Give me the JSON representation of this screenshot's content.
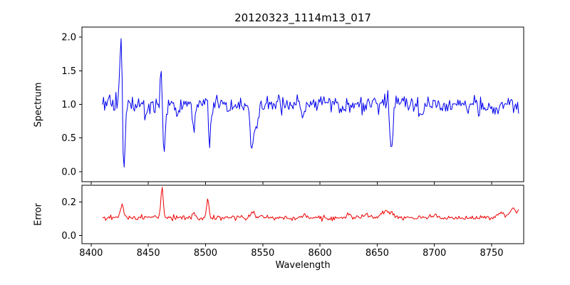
{
  "chart_data": [
    {
      "type": "line",
      "panel": "spectrum",
      "title": "20120323_1114m13_017",
      "ylabel": "Spectrum",
      "xlabel": "",
      "legend": "none",
      "grid": false,
      "line_color": "#0000ee",
      "xlim": [
        8392,
        8778
      ],
      "ylim": [
        -0.15,
        2.15
      ],
      "xticks": [
        8400,
        8450,
        8500,
        8550,
        8600,
        8650,
        8700,
        8750
      ],
      "yticks": [
        0.0,
        0.5,
        1.0,
        1.5,
        2.0
      ],
      "x_start": 8410,
      "x_end": 8774,
      "x_step": 0.9,
      "baseline": 1.0,
      "noise_sigma": 0.065,
      "noise_seed": 42,
      "features": [
        {
          "x": 8426.3,
          "amp": 1.06,
          "w": 1.1
        },
        {
          "x": 8428.6,
          "amp": -1.1,
          "w": 1.1
        },
        {
          "x": 8448.0,
          "amp": -0.18,
          "w": 1.2
        },
        {
          "x": 8461.3,
          "amp": 0.6,
          "w": 1.0
        },
        {
          "x": 8463.6,
          "amp": -0.7,
          "w": 1.2
        },
        {
          "x": 8475.0,
          "amp": -0.18,
          "w": 1.2
        },
        {
          "x": 8490.0,
          "amp": -0.32,
          "w": 1.3
        },
        {
          "x": 8501.3,
          "amp": 0.33,
          "w": 1.0
        },
        {
          "x": 8503.3,
          "amp": -0.55,
          "w": 1.4
        },
        {
          "x": 8520.0,
          "amp": -0.15,
          "w": 1.2
        },
        {
          "x": 8540.5,
          "amp": -0.64,
          "w": 1.8
        },
        {
          "x": 8544.5,
          "amp": -0.3,
          "w": 1.4
        },
        {
          "x": 8585.0,
          "amp": -0.2,
          "w": 1.5
        },
        {
          "x": 8620.0,
          "amp": -0.14,
          "w": 1.5
        },
        {
          "x": 8659.5,
          "amp": 0.3,
          "w": 1.0
        },
        {
          "x": 8662.0,
          "amp": -0.68,
          "w": 1.6
        },
        {
          "x": 8688.0,
          "amp": -0.15,
          "w": 1.3
        },
        {
          "x": 8752.0,
          "amp": -0.14,
          "w": 1.3
        }
      ],
      "observed_extremes": {
        "peak_max": 2.03,
        "trough_min": -0.05,
        "continuum": 1.0
      }
    },
    {
      "type": "line",
      "panel": "error",
      "title": "",
      "ylabel": "Error",
      "xlabel": "Wavelength",
      "legend": "none",
      "grid": false,
      "line_color": "#ee0000",
      "xlim": [
        8392,
        8778
      ],
      "ylim": [
        -0.05,
        0.3
      ],
      "xticks": [
        8400,
        8450,
        8500,
        8550,
        8600,
        8650,
        8700,
        8750
      ],
      "yticks": [
        0.0,
        0.2
      ],
      "x_start": 8410,
      "x_end": 8774,
      "x_step": 0.9,
      "baseline": 0.105,
      "noise_sigma": 0.007,
      "noise_seed": 7,
      "features": [
        {
          "x": 8427.0,
          "amp": 0.085,
          "w": 1.3
        },
        {
          "x": 8462.0,
          "amp": 0.185,
          "w": 1.0
        },
        {
          "x": 8490.0,
          "amp": 0.03,
          "w": 1.2
        },
        {
          "x": 8502.0,
          "amp": 0.1,
          "w": 1.1
        },
        {
          "x": 8541.0,
          "amp": 0.035,
          "w": 2.0
        },
        {
          "x": 8548.0,
          "amp": 0.02,
          "w": 1.5
        },
        {
          "x": 8586.0,
          "amp": 0.018,
          "w": 2.0
        },
        {
          "x": 8625.0,
          "amp": 0.02,
          "w": 2.0
        },
        {
          "x": 8640.0,
          "amp": 0.02,
          "w": 2.0
        },
        {
          "x": 8657.0,
          "amp": 0.045,
          "w": 2.5
        },
        {
          "x": 8663.0,
          "amp": 0.03,
          "w": 1.5
        },
        {
          "x": 8700.0,
          "amp": 0.015,
          "w": 2.0
        },
        {
          "x": 8758.0,
          "amp": 0.035,
          "w": 3.0
        },
        {
          "x": 8768.0,
          "amp": 0.05,
          "w": 2.5
        },
        {
          "x": 8774.0,
          "amp": 0.04,
          "w": 1.5
        }
      ],
      "observed_extremes": {
        "peak_max": 0.29,
        "baseline_level": 0.1
      }
    }
  ],
  "colors": {
    "spectrum_line": "#0000ee",
    "error_line": "#ee0000",
    "axis": "#000000",
    "background": "#ffffff"
  }
}
